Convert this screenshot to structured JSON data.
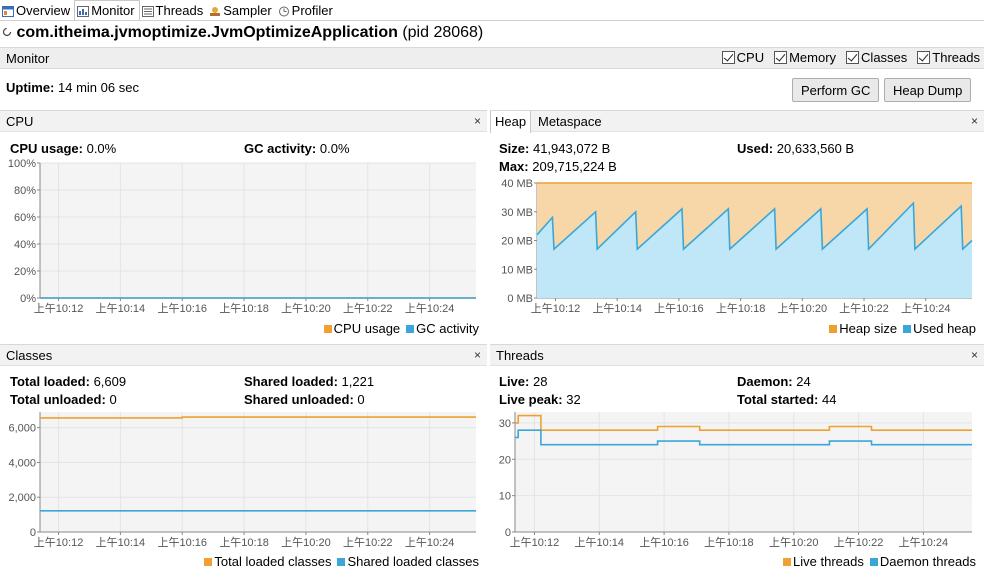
{
  "tabs": [
    {
      "label": "Overview",
      "icon": "overview-icon",
      "active": false
    },
    {
      "label": "Monitor",
      "icon": "monitor-icon",
      "active": true
    },
    {
      "label": "Threads",
      "icon": "threads-icon",
      "active": false
    },
    {
      "label": "Sampler",
      "icon": "sampler-icon",
      "active": false
    },
    {
      "label": "Profiler",
      "icon": "profiler-icon",
      "active": false
    }
  ],
  "header": {
    "app_name": "com.itheima.jvmoptimize.JvmOptimizeApplication",
    "pid": "(pid 28068)"
  },
  "monitor": {
    "label": "Monitor",
    "checks": [
      "CPU",
      "Memory",
      "Classes",
      "Threads"
    ],
    "uptime_label": "Uptime:",
    "uptime_value": "14 min 06 sec",
    "perform_gc": "Perform GC",
    "heap_dump": "Heap Dump"
  },
  "colors": {
    "orange": "#f0a030",
    "blue": "#3aa7d8",
    "orange_fill": "#f7d6a8",
    "blue_fill": "#bfe7f7",
    "grid": "#e4e4e4",
    "plot_bg": "#f4f4f4"
  },
  "cpu": {
    "title": "CPU",
    "stats": [
      {
        "label": "CPU usage:",
        "value": "0.0%"
      },
      {
        "label": "GC activity:",
        "value": "0.0%"
      }
    ],
    "legend": [
      "CPU usage",
      "GC activity"
    ]
  },
  "heap": {
    "tabs": [
      "Heap",
      "Metaspace"
    ],
    "stats": [
      {
        "label": "Size:",
        "value": "41,943,072 B"
      },
      {
        "label": "Used:",
        "value": "20,633,560 B"
      },
      {
        "label": "Max:",
        "value": "209,715,224 B"
      }
    ],
    "legend": [
      "Heap size",
      "Used heap"
    ]
  },
  "classes": {
    "title": "Classes",
    "stats": [
      {
        "label": "Total loaded:",
        "value": "6,609"
      },
      {
        "label": "Shared loaded:",
        "value": "1,221"
      },
      {
        "label": "Total unloaded:",
        "value": "0"
      },
      {
        "label": "Shared unloaded:",
        "value": "0"
      }
    ],
    "legend": [
      "Total loaded classes",
      "Shared loaded classes"
    ]
  },
  "threads": {
    "title": "Threads",
    "stats": [
      {
        "label": "Live:",
        "value": "28"
      },
      {
        "label": "Daemon:",
        "value": "24"
      },
      {
        "label": "Live peak:",
        "value": "32"
      },
      {
        "label": "Total started:",
        "value": "44"
      }
    ],
    "legend": [
      "Live threads",
      "Daemon threads"
    ]
  },
  "close_glyph": "×",
  "chart_data": [
    {
      "type": "line",
      "id": "cpu",
      "x_ticks": [
        "上午10:12",
        "上午10:14",
        "上午10:16",
        "上午10:18",
        "上午10:20",
        "上午10:22",
        "上午10:24"
      ],
      "y_ticks": [
        "100%",
        "80%",
        "60%",
        "40%",
        "20%",
        "0%"
      ],
      "ylim": [
        0,
        100
      ],
      "xlim": [
        0,
        14.1
      ],
      "series": [
        {
          "name": "CPU usage",
          "x": [
            0,
            14.1
          ],
          "y": [
            0,
            0
          ]
        },
        {
          "name": "GC activity",
          "x": [
            0,
            14.1
          ],
          "y": [
            0,
            0
          ]
        }
      ]
    },
    {
      "type": "area",
      "id": "heap",
      "x_ticks": [
        "上午10:12",
        "上午10:14",
        "上午10:16",
        "上午10:18",
        "上午10:20",
        "上午10:22",
        "上午10:24"
      ],
      "y_ticks": [
        "40 MB",
        "30 MB",
        "20 MB",
        "10 MB",
        "0 MB"
      ],
      "ylim": [
        0,
        40
      ],
      "xlim": [
        0,
        14.1
      ],
      "series": [
        {
          "name": "Heap size",
          "x": [
            0,
            14.1
          ],
          "y": [
            40,
            40
          ]
        },
        {
          "name": "Used heap",
          "x": [
            0,
            0.25,
            0.5,
            0.55,
            1.9,
            1.95,
            3.2,
            3.25,
            4.7,
            4.75,
            6.2,
            6.25,
            7.7,
            7.75,
            9.2,
            9.25,
            10.7,
            10.75,
            12.2,
            12.25,
            13.75,
            13.8,
            14.1
          ],
          "y": [
            22,
            25,
            28,
            17,
            30,
            17,
            30,
            17,
            31,
            17,
            31,
            17,
            31,
            17,
            31,
            17,
            31,
            17,
            33,
            17,
            32,
            17,
            20
          ]
        }
      ]
    },
    {
      "type": "line",
      "id": "classes",
      "x_ticks": [
        "上午10:12",
        "上午10:14",
        "上午10:16",
        "上午10:18",
        "上午10:20",
        "上午10:22",
        "上午10:24"
      ],
      "y_ticks": [
        "6,000",
        "4,000",
        "2,000",
        "0"
      ],
      "ylim": [
        0,
        6900
      ],
      "xlim": [
        0,
        14.1
      ],
      "series": [
        {
          "name": "Total loaded classes",
          "x": [
            0,
            4.6,
            4.6,
            14.1
          ],
          "y": [
            6560,
            6560,
            6609,
            6609
          ]
        },
        {
          "name": "Shared loaded classes",
          "x": [
            0,
            14.1
          ],
          "y": [
            1221,
            1221
          ]
        }
      ]
    },
    {
      "type": "line",
      "id": "threads",
      "x_ticks": [
        "上午10:12",
        "上午10:14",
        "上午10:16",
        "上午10:18",
        "上午10:20",
        "上午10:22",
        "上午10:24"
      ],
      "y_ticks": [
        "30",
        "20",
        "10",
        "0"
      ],
      "ylim": [
        0,
        33
      ],
      "xlim": [
        0,
        14.1
      ],
      "series": [
        {
          "name": "Live threads",
          "x": [
            0,
            0.1,
            0.1,
            0.8,
            0.8,
            4.4,
            4.4,
            5.7,
            5.7,
            9.7,
            9.7,
            11.0,
            11.0,
            14.1
          ],
          "y": [
            30,
            30,
            32,
            32,
            28,
            28,
            29,
            29,
            28,
            28,
            29,
            29,
            28,
            28
          ]
        },
        {
          "name": "Daemon threads",
          "x": [
            0,
            0.1,
            0.1,
            0.8,
            0.8,
            4.4,
            4.4,
            5.7,
            5.7,
            9.7,
            9.7,
            11.0,
            11.0,
            14.1
          ],
          "y": [
            26,
            26,
            28,
            28,
            24,
            24,
            25,
            25,
            24,
            24,
            25,
            25,
            24,
            24
          ]
        }
      ]
    }
  ]
}
